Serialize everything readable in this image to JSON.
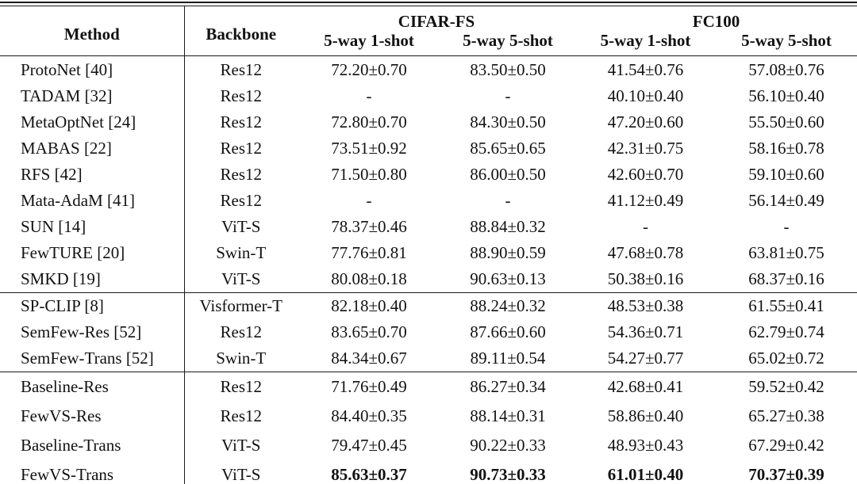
{
  "table": {
    "headers": {
      "method": "Method",
      "backbone": "Backbone",
      "dataset1": "CIFAR-FS",
      "dataset2": "FC100",
      "sub": [
        "5-way 1-shot",
        "5-way 5-shot",
        "5-way 1-shot",
        "5-way 5-shot"
      ]
    },
    "groups": [
      {
        "rows": [
          {
            "method": "ProtoNet [40]",
            "backbone": "Res12",
            "values": [
              "72.20±0.70",
              "83.50±0.50",
              "41.54±0.76",
              "57.08±0.76"
            ],
            "bold": false
          },
          {
            "method": "TADAM [32]",
            "backbone": "Res12",
            "values": [
              "-",
              "-",
              "40.10±0.40",
              "56.10±0.40"
            ],
            "bold": false
          },
          {
            "method": "MetaOptNet [24]",
            "backbone": "Res12",
            "values": [
              "72.80±0.70",
              "84.30±0.50",
              "47.20±0.60",
              "55.50±0.60"
            ],
            "bold": false
          },
          {
            "method": "MABAS [22]",
            "backbone": "Res12",
            "values": [
              "73.51±0.92",
              "85.65±0.65",
              "42.31±0.75",
              "58.16±0.78"
            ],
            "bold": false
          },
          {
            "method": "RFS [42]",
            "backbone": "Res12",
            "values": [
              "71.50±0.80",
              "86.00±0.50",
              "42.60±0.70",
              "59.10±0.60"
            ],
            "bold": false
          },
          {
            "method": "Mata-AdaM [41]",
            "backbone": "Res12",
            "values": [
              "-",
              "-",
              "41.12±0.49",
              "56.14±0.49"
            ],
            "bold": false
          },
          {
            "method": "SUN [14]",
            "backbone": "ViT-S",
            "values": [
              "78.37±0.46",
              "88.84±0.32",
              "-",
              "-"
            ],
            "bold": false
          },
          {
            "method": "FewTURE [20]",
            "backbone": "Swin-T",
            "values": [
              "77.76±0.81",
              "88.90±0.59",
              "47.68±0.78",
              "63.81±0.75"
            ],
            "bold": false
          },
          {
            "method": "SMKD [19]",
            "backbone": "ViT-S",
            "values": [
              "80.08±0.18",
              "90.63±0.13",
              "50.38±0.16",
              "68.37±0.16"
            ],
            "bold": false
          }
        ]
      },
      {
        "rows": [
          {
            "method": "SP-CLIP [8]",
            "backbone": "Visformer-T",
            "values": [
              "82.18±0.40",
              "88.24±0.32",
              "48.53±0.38",
              "61.55±0.41"
            ],
            "bold": false
          },
          {
            "method": "SemFew-Res [52]",
            "backbone": "Res12",
            "values": [
              "83.65±0.70",
              "87.66±0.60",
              "54.36±0.71",
              "62.79±0.74"
            ],
            "bold": false
          },
          {
            "method": "SemFew-Trans [52]",
            "backbone": "Swin-T",
            "values": [
              "84.34±0.67",
              "89.11±0.54",
              "54.27±0.77",
              "65.02±0.72"
            ],
            "bold": false
          }
        ]
      },
      {
        "rows": [
          {
            "method": "Baseline-Res",
            "backbone": "Res12",
            "values": [
              "71.76±0.49",
              "86.27±0.34",
              "42.68±0.41",
              "59.52±0.42"
            ],
            "bold": false
          },
          {
            "method": "FewVS-Res",
            "backbone": "Res12",
            "values": [
              "84.40±0.35",
              "88.14±0.31",
              "58.86±0.40",
              "65.27±0.38"
            ],
            "bold": false
          },
          {
            "method": "Baseline-Trans",
            "backbone": "ViT-S",
            "values": [
              "79.47±0.45",
              "90.22±0.33",
              "48.93±0.43",
              "67.29±0.42"
            ],
            "bold": false
          },
          {
            "method": "FewVS-Trans",
            "backbone": "ViT-S",
            "values": [
              "85.63±0.37",
              "90.73±0.33",
              "61.01±0.40",
              "70.37±0.39"
            ],
            "bold": true
          }
        ]
      }
    ]
  }
}
